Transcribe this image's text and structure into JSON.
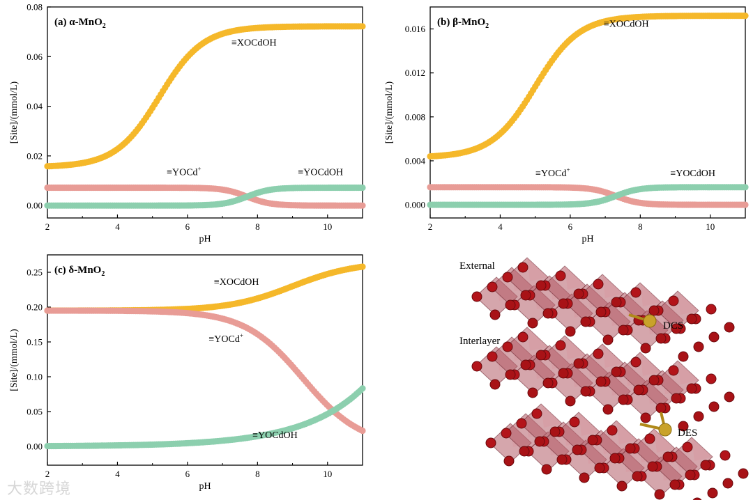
{
  "colors": {
    "xocdoh": "#F5B82A",
    "yocd": "#E89C96",
    "yocdoh": "#8CCFAE",
    "axis": "#000000"
  },
  "chart_data": [
    {
      "type": "scatter",
      "panel": "a",
      "title": "(a) α-MnO",
      "title_sub": "2",
      "xlabel": "pH",
      "ylabel": "[Site]/(mmol/L)",
      "xlim": [
        2,
        11
      ],
      "ylim": [
        -0.005,
        0.08
      ],
      "xticks": [
        2,
        4,
        6,
        8,
        10
      ],
      "xtick_labels": [
        "2",
        "4",
        "6",
        "8",
        "10"
      ],
      "yticks": [
        0,
        0.02,
        0.04,
        0.06,
        0.08
      ],
      "ytick_labels": [
        "0.00",
        "0.02",
        "0.04",
        "0.06",
        "0.08"
      ],
      "series": [
        {
          "name": "≡XOCdOH",
          "color_key": "xocdoh",
          "kind": "sigmoid_up",
          "low": 0.0155,
          "high": 0.0722,
          "mid": 5.2,
          "k": 1.6
        },
        {
          "name": "≡YOCd",
          "sup": "+",
          "color_key": "yocd",
          "kind": "sigmoid_down",
          "low": 0.0,
          "high": 0.0072,
          "mid": 7.7,
          "k": 3.0
        },
        {
          "name": "≡YOCdOH",
          "color_key": "yocdoh",
          "kind": "sigmoid_up",
          "low": 0.0,
          "high": 0.0072,
          "mid": 7.7,
          "k": 3.0
        }
      ],
      "labels": [
        {
          "text": "≡XOCdOH",
          "x": 7.9,
          "y": 0.0645
        },
        {
          "text": "≡YOCd",
          "sup": "+",
          "x": 5.9,
          "y": 0.0122
        },
        {
          "text": "≡YOCdOH",
          "x": 9.8,
          "y": 0.0122
        }
      ]
    },
    {
      "type": "scatter",
      "panel": "b",
      "title": "(b) β-MnO",
      "title_sub": "2",
      "xlabel": "pH",
      "ylabel": "[Site]/(mmol/L)",
      "xlim": [
        2,
        11
      ],
      "ylim": [
        -0.0012,
        0.018
      ],
      "xticks": [
        2,
        4,
        6,
        8,
        10
      ],
      "xtick_labels": [
        "2",
        "4",
        "6",
        "8",
        "10"
      ],
      "yticks": [
        0,
        0.004,
        0.008,
        0.012,
        0.016
      ],
      "ytick_labels": [
        "0.000",
        "0.004",
        "0.008",
        "0.012",
        "0.016"
      ],
      "series": [
        {
          "name": "≡XOCdOH",
          "color_key": "xocdoh",
          "kind": "sigmoid_up",
          "low": 0.0043,
          "high": 0.0172,
          "mid": 5.0,
          "k": 1.6
        },
        {
          "name": "≡YOCd",
          "sup": "+",
          "color_key": "yocd",
          "kind": "sigmoid_down",
          "low": 0.0,
          "high": 0.0016,
          "mid": 7.3,
          "k": 3.0
        },
        {
          "name": "≡YOCdOH",
          "color_key": "yocdoh",
          "kind": "sigmoid_up",
          "low": 0.0,
          "high": 0.0016,
          "mid": 7.3,
          "k": 3.0
        }
      ],
      "labels": [
        {
          "text": "≡XOCdOH",
          "x": 7.6,
          "y": 0.0162
        },
        {
          "text": "≡YOCd",
          "sup": "+",
          "x": 5.5,
          "y": 0.0026
        },
        {
          "text": "≡YOCdOH",
          "x": 9.5,
          "y": 0.0026
        }
      ]
    },
    {
      "type": "scatter",
      "panel": "c",
      "title": "(c) δ-MnO",
      "title_sub": "2",
      "xlabel": "pH",
      "ylabel": "[Site]/(mmol/L)",
      "xlim": [
        2,
        11
      ],
      "ylim": [
        -0.027,
        0.275
      ],
      "xticks": [
        2,
        4,
        6,
        8,
        10
      ],
      "xtick_labels": [
        "2",
        "4",
        "6",
        "8",
        "10"
      ],
      "yticks": [
        0,
        0.05,
        0.1,
        0.15,
        0.2,
        0.25
      ],
      "ytick_labels": [
        "0.00",
        "0.05",
        "0.10",
        "0.15",
        "0.20",
        "0.25"
      ],
      "series": [
        {
          "name": "≡XOCdOH",
          "color_key": "xocdoh",
          "kind": "sigmoid_up",
          "low": 0.195,
          "high": 0.265,
          "mid": 9.0,
          "k": 1.1
        },
        {
          "name": "≡YOCd",
          "sup": "+",
          "color_key": "yocd",
          "kind": "sigmoid_down",
          "low": 0.0,
          "high": 0.195,
          "mid": 9.3,
          "k": 1.2
        },
        {
          "name": "≡YOCdOH",
          "color_key": "yocdoh",
          "kind": "exp",
          "a": 0.00045,
          "b": 0.58
        }
      ],
      "labels": [
        {
          "text": "≡XOCdOH",
          "x": 7.4,
          "y": 0.232
        },
        {
          "text": "≡YOCd",
          "sup": "+",
          "x": 7.1,
          "y": 0.15
        },
        {
          "text": "≡YOCdOH",
          "x": 8.5,
          "y": 0.012
        }
      ]
    }
  ],
  "structure": {
    "label_external": "External",
    "label_interlayer": "Interlayer",
    "label_dcs": "DCS",
    "label_des": "DES"
  },
  "watermark": "大数跨境"
}
